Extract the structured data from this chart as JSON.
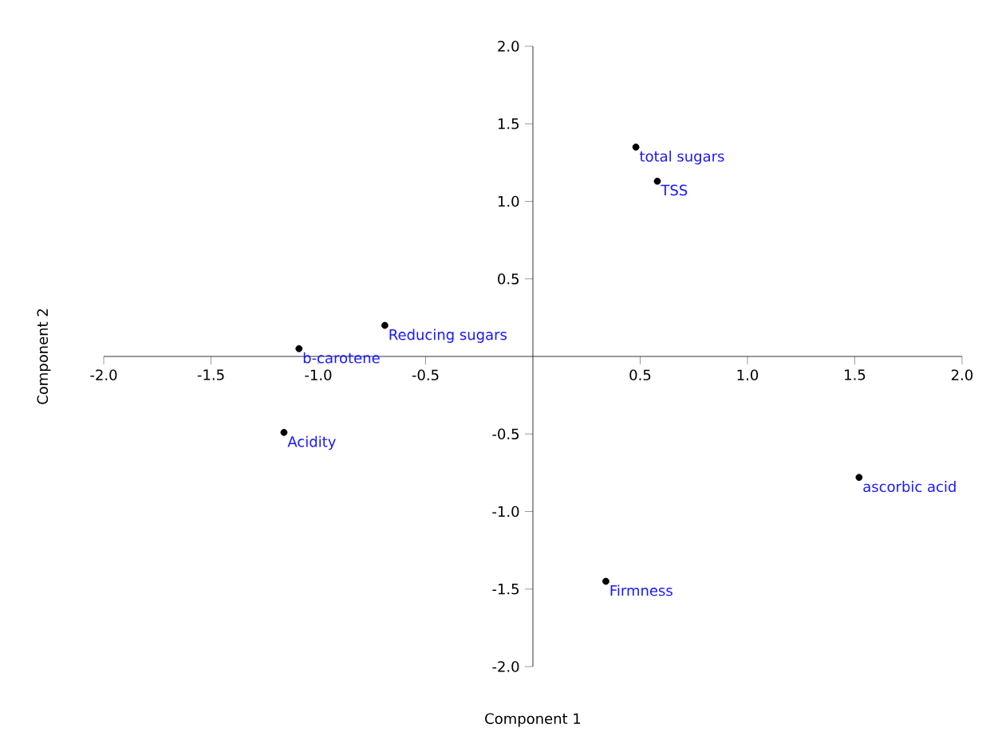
{
  "chart_data": {
    "type": "scatter",
    "xlabel": "Component 1",
    "ylabel": "Component 2",
    "x": [
      0.48,
      0.58,
      -0.69,
      -1.09,
      -1.16,
      1.52,
      0.34
    ],
    "values": [
      1.35,
      1.13,
      0.2,
      0.05,
      -0.49,
      -0.78,
      -1.45
    ],
    "color": "#000000",
    "marker": "circle",
    "grid": false,
    "xlim": [
      -2,
      2
    ],
    "ylim": [
      -2,
      2
    ],
    "xticks": [
      {
        "value": -2,
        "label": "-2.0"
      },
      {
        "value": -1.5,
        "label": "-1.5"
      },
      {
        "value": -1,
        "label": "-1.0"
      },
      {
        "value": -0.5,
        "label": "-0.5"
      },
      {
        "value": 0.5,
        "label": "0.5"
      },
      {
        "value": 1,
        "label": "1.0"
      },
      {
        "value": 1.5,
        "label": "1.5"
      },
      {
        "value": 2,
        "label": "2.0"
      }
    ],
    "yticks": [
      {
        "value": -2,
        "label": "-2.0"
      },
      {
        "value": -1.5,
        "label": "-1.5"
      },
      {
        "value": -1,
        "label": "-1.0"
      },
      {
        "value": -0.5,
        "label": "-0.5"
      },
      {
        "value": 0.5,
        "label": "0.5"
      },
      {
        "value": 1,
        "label": "1.0"
      },
      {
        "value": 1.5,
        "label": "1.5"
      },
      {
        "value": 2,
        "label": "2.0"
      }
    ],
    "annotations": [
      {
        "text": "total sugars",
        "x": 0.48,
        "y": 1.35
      },
      {
        "text": "TSS",
        "x": 0.58,
        "y": 1.13
      },
      {
        "text": "Reducing sugars",
        "x": -0.69,
        "y": 0.2
      },
      {
        "text": "b-carotene",
        "x": -1.09,
        "y": 0.05
      },
      {
        "text": "Acidity",
        "x": -1.16,
        "y": -0.49
      },
      {
        "text": "ascorbic acid",
        "x": 1.52,
        "y": -0.78
      },
      {
        "text": "Firmness",
        "x": 0.34,
        "y": -1.45
      }
    ]
  }
}
